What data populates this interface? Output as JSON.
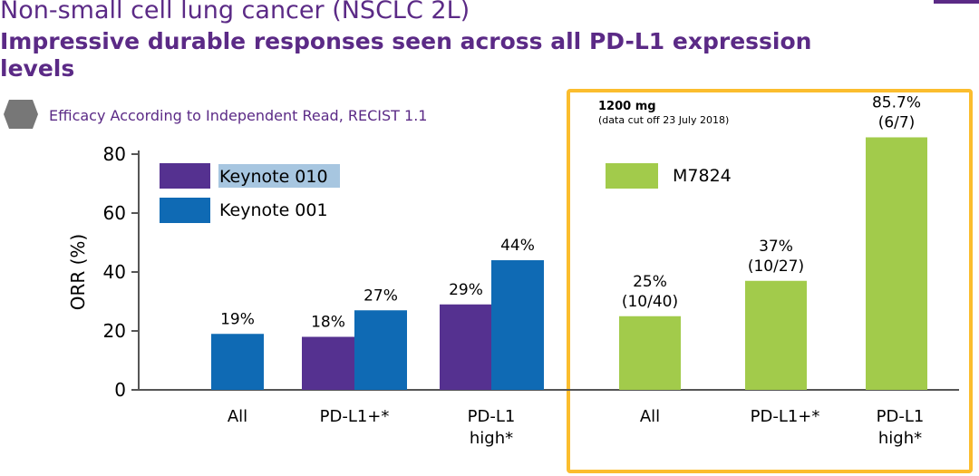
{
  "slide": {
    "title": "Non-small cell lung cancer (NSCLC 2L)",
    "headline": "Impressive durable responses seen across all PD-L1 expression levels",
    "subtitle": "Efficacy According to Independent Read, RECIST 1.1",
    "subtitle_icon": "hexagon-bullet-icon",
    "accent_color": "#5b2a86",
    "highlight_box_color": "#fbbd2e"
  },
  "chart_data": [
    {
      "type": "bar",
      "ylabel": "ORR (%)",
      "ylim": [
        0,
        80
      ],
      "yticks": [
        0,
        20,
        40,
        60,
        80
      ],
      "legend_position": "top-left",
      "categories": [
        "All",
        "PD-L1+*",
        "PD-L1 high*"
      ],
      "series": [
        {
          "name": "Keynote 010",
          "color": "#553190",
          "values": [
            null,
            18,
            29
          ],
          "labels": [
            "",
            "18%",
            "29%"
          ]
        },
        {
          "name": "Keynote 001",
          "color": "#0f6ab4",
          "values": [
            19,
            27,
            44
          ],
          "labels": [
            "19%",
            "27%",
            "44%"
          ]
        }
      ]
    },
    {
      "type": "bar",
      "box_title": "1200 mg",
      "box_note": "(data cut off 23 July 2018)",
      "legend_position": "top-left",
      "categories": [
        "All",
        "PD-L1+*",
        "PD-L1 high*"
      ],
      "series": [
        {
          "name": "M7824",
          "color": "#a2cb4b",
          "values": [
            25,
            37,
            85.7
          ],
          "labels": [
            "25%",
            "37%",
            "85.7%"
          ],
          "sublabels": [
            "(10/40)",
            "(10/27)",
            "(6/7)"
          ]
        }
      ]
    }
  ]
}
